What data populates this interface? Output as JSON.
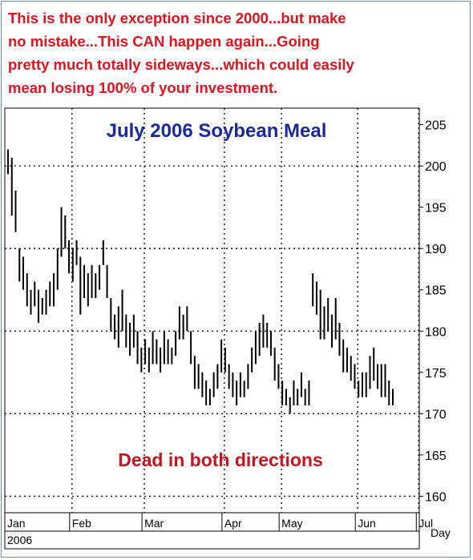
{
  "caption": [
    "This is the only exception since 2000...but make",
    "no mistake...This CAN happen again...Going",
    "pretty much totally sideways...which could easily",
    "mean losing 100% of your investment."
  ],
  "colors": {
    "caption": "#e0141e",
    "title": "#1a2a9a",
    "annotation": "#c8141e",
    "bars": "#000000",
    "grid": "#000000"
  },
  "chart_data": {
    "type": "bar",
    "subtype": "ohlc-price-bars",
    "title": "July 2006 Soybean Meal",
    "annotation": "Dead in both directions",
    "x_unit_label": "Day",
    "year_label": "2006",
    "months": [
      "Jan",
      "Feb",
      "Mar",
      "Apr",
      "May",
      "Jun",
      "Jul"
    ],
    "y_ticks": [
      160,
      165,
      170,
      175,
      180,
      185,
      190,
      195,
      200,
      205
    ],
    "ylim": [
      158,
      207
    ],
    "grid": true,
    "bars": [
      {
        "h": 202,
        "l": 199
      },
      {
        "h": 201,
        "l": 194
      },
      {
        "h": 197,
        "l": 192
      },
      {
        "h": 190,
        "l": 186
      },
      {
        "h": 189,
        "l": 185
      },
      {
        "h": 187,
        "l": 183
      },
      {
        "h": 185,
        "l": 182
      },
      {
        "h": 186,
        "l": 183
      },
      {
        "h": 185,
        "l": 181
      },
      {
        "h": 184,
        "l": 182
      },
      {
        "h": 185,
        "l": 182
      },
      {
        "h": 186,
        "l": 183
      },
      {
        "h": 187,
        "l": 183
      },
      {
        "h": 190,
        "l": 185
      },
      {
        "h": 195,
        "l": 189
      },
      {
        "h": 194,
        "l": 190
      },
      {
        "h": 191,
        "l": 187
      },
      {
        "h": 190,
        "l": 186
      },
      {
        "h": 191,
        "l": 188
      },
      {
        "h": 189,
        "l": 182
      },
      {
        "h": 188,
        "l": 184
      },
      {
        "h": 187,
        "l": 183
      },
      {
        "h": 188,
        "l": 184
      },
      {
        "h": 187,
        "l": 184
      },
      {
        "h": 188,
        "l": 185
      },
      {
        "h": 191,
        "l": 188
      },
      {
        "h": 188,
        "l": 184
      },
      {
        "h": 184,
        "l": 180
      },
      {
        "h": 182,
        "l": 179
      },
      {
        "h": 183,
        "l": 178
      },
      {
        "h": 185,
        "l": 180
      },
      {
        "h": 182,
        "l": 178
      },
      {
        "h": 181,
        "l": 177
      },
      {
        "h": 182,
        "l": 178
      },
      {
        "h": 180,
        "l": 176
      },
      {
        "h": 178,
        "l": 175
      },
      {
        "h": 179,
        "l": 176
      },
      {
        "h": 178,
        "l": 175
      },
      {
        "h": 180,
        "l": 176
      },
      {
        "h": 179,
        "l": 176
      },
      {
        "h": 178,
        "l": 175
      },
      {
        "h": 180,
        "l": 176
      },
      {
        "h": 179,
        "l": 176
      },
      {
        "h": 178,
        "l": 176
      },
      {
        "h": 180,
        "l": 177
      },
      {
        "h": 183,
        "l": 179
      },
      {
        "h": 182,
        "l": 179
      },
      {
        "h": 183,
        "l": 180
      },
      {
        "h": 180,
        "l": 176
      },
      {
        "h": 177,
        "l": 173
      },
      {
        "h": 176,
        "l": 173
      },
      {
        "h": 175,
        "l": 172
      },
      {
        "h": 174,
        "l": 171
      },
      {
        "h": 173,
        "l": 171
      },
      {
        "h": 175,
        "l": 172
      },
      {
        "h": 176,
        "l": 173
      },
      {
        "h": 179,
        "l": 175
      },
      {
        "h": 178,
        "l": 175
      },
      {
        "h": 176,
        "l": 173
      },
      {
        "h": 175,
        "l": 172
      },
      {
        "h": 174,
        "l": 171
      },
      {
        "h": 175,
        "l": 172
      },
      {
        "h": 174,
        "l": 172
      },
      {
        "h": 176,
        "l": 173
      },
      {
        "h": 178,
        "l": 175
      },
      {
        "h": 180,
        "l": 176
      },
      {
        "h": 181,
        "l": 177
      },
      {
        "h": 182,
        "l": 178
      },
      {
        "h": 181,
        "l": 178
      },
      {
        "h": 180,
        "l": 177
      },
      {
        "h": 178,
        "l": 174
      },
      {
        "h": 176,
        "l": 173
      },
      {
        "h": 174,
        "l": 171
      },
      {
        "h": 173,
        "l": 171
      },
      {
        "h": 172,
        "l": 170
      },
      {
        "h": 174,
        "l": 171
      },
      {
        "h": 173,
        "l": 171
      },
      {
        "h": 175,
        "l": 172
      },
      {
        "h": 173,
        "l": 171
      },
      {
        "h": 174,
        "l": 171
      },
      {
        "h": 187,
        "l": 183
      },
      {
        "h": 186,
        "l": 182
      },
      {
        "h": 185,
        "l": 179
      },
      {
        "h": 183,
        "l": 179
      },
      {
        "h": 184,
        "l": 180
      },
      {
        "h": 182,
        "l": 178
      },
      {
        "h": 184,
        "l": 179
      },
      {
        "h": 181,
        "l": 177
      },
      {
        "h": 179,
        "l": 175
      },
      {
        "h": 178,
        "l": 175
      },
      {
        "h": 177,
        "l": 174
      },
      {
        "h": 176,
        "l": 173
      },
      {
        "h": 174,
        "l": 172
      },
      {
        "h": 175,
        "l": 172
      },
      {
        "h": 175,
        "l": 172
      },
      {
        "h": 177,
        "l": 173
      },
      {
        "h": 178,
        "l": 174
      },
      {
        "h": 176,
        "l": 173
      },
      {
        "h": 176,
        "l": 172
      },
      {
        "h": 176,
        "l": 172
      },
      {
        "h": 174,
        "l": 171
      },
      {
        "h": 173,
        "l": 171
      }
    ]
  }
}
